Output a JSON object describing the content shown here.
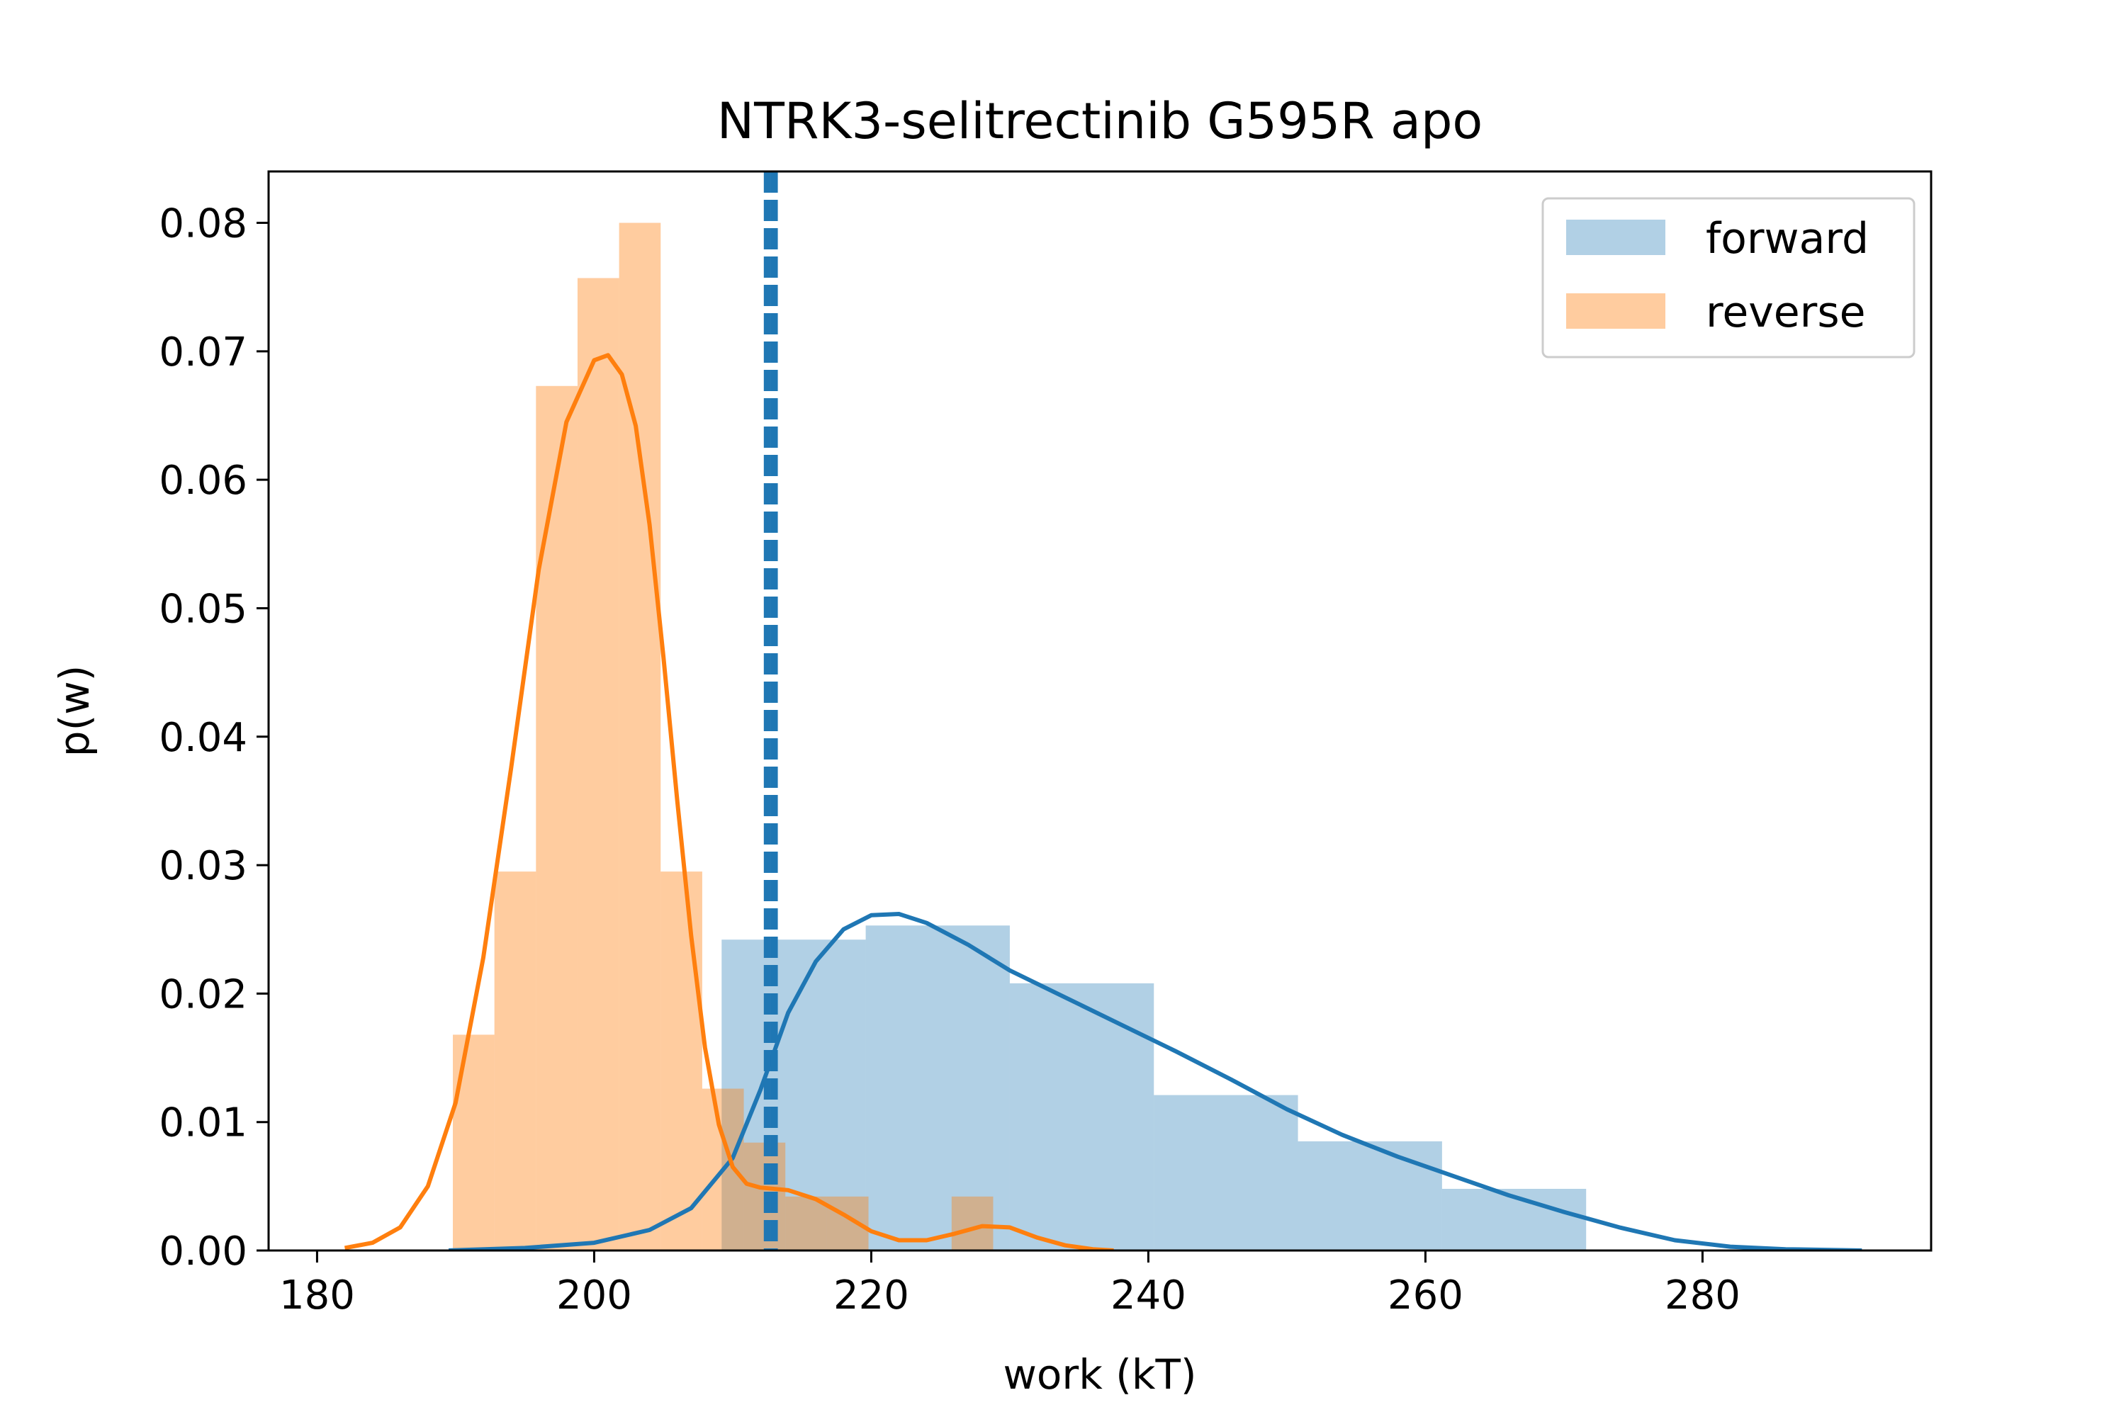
{
  "chart_data": {
    "type": "histogram",
    "title": "NTRK3-selitrectinib G595R apo",
    "xlabel": "work (kT)",
    "ylabel": "p(w)",
    "xlim": [
      176.5,
      296.5
    ],
    "ylim": [
      0,
      0.084
    ],
    "xticks": [
      180,
      200,
      220,
      240,
      260,
      280
    ],
    "yticks": [
      0.0,
      0.01,
      0.02,
      0.03,
      0.04,
      0.05,
      0.06,
      0.07,
      0.08
    ],
    "xtick_labels": [
      "180",
      "200",
      "220",
      "240",
      "260",
      "280"
    ],
    "ytick_labels": [
      "0.00",
      "0.01",
      "0.02",
      "0.03",
      "0.04",
      "0.05",
      "0.06",
      "0.07",
      "0.08"
    ],
    "legend_position": "upper right",
    "grid": false,
    "series": [
      {
        "name": "forward",
        "color": "#1f77b4",
        "hist_opacity": 0.35,
        "bins": [
          {
            "x0": 209.2,
            "x1": 219.6,
            "density": 0.0242
          },
          {
            "x0": 219.6,
            "x1": 230.0,
            "density": 0.0253
          },
          {
            "x0": 230.0,
            "x1": 240.4,
            "density": 0.0208
          },
          {
            "x0": 240.4,
            "x1": 250.8,
            "density": 0.0121
          },
          {
            "x0": 250.8,
            "x1": 261.2,
            "density": 0.0085
          },
          {
            "x0": 261.2,
            "x1": 271.6,
            "density": 0.0048
          }
        ],
        "kde": [
          [
            189.5,
            0.0
          ],
          [
            195,
            0.0002
          ],
          [
            200,
            0.0006
          ],
          [
            204,
            0.0016
          ],
          [
            207,
            0.0033
          ],
          [
            210,
            0.0072
          ],
          [
            212,
            0.0125
          ],
          [
            213,
            0.0155
          ],
          [
            214,
            0.0185
          ],
          [
            216,
            0.0225
          ],
          [
            218,
            0.025
          ],
          [
            220,
            0.0261
          ],
          [
            222,
            0.0262
          ],
          [
            224,
            0.0255
          ],
          [
            227,
            0.0238
          ],
          [
            230,
            0.0218
          ],
          [
            234,
            0.0197
          ],
          [
            238,
            0.0176
          ],
          [
            242,
            0.0155
          ],
          [
            246,
            0.0133
          ],
          [
            250,
            0.011
          ],
          [
            254,
            0.009
          ],
          [
            258,
            0.0073
          ],
          [
            262,
            0.0058
          ],
          [
            266,
            0.0043
          ],
          [
            270,
            0.003
          ],
          [
            274,
            0.0018
          ],
          [
            278,
            0.0008
          ],
          [
            282,
            0.0003
          ],
          [
            286,
            0.0001
          ],
          [
            291.5,
            0.0
          ]
        ],
        "mean_line": 212.5
      },
      {
        "name": "reverse",
        "color": "#ff7f0e",
        "hist_opacity": 0.4,
        "bins": [
          {
            "x0": 189.8,
            "x1": 192.8,
            "density": 0.0168
          },
          {
            "x0": 192.8,
            "x1": 195.8,
            "density": 0.0295
          },
          {
            "x0": 195.8,
            "x1": 198.8,
            "density": 0.0673
          },
          {
            "x0": 198.8,
            "x1": 201.8,
            "density": 0.0757
          },
          {
            "x0": 201.8,
            "x1": 204.8,
            "density": 0.08
          },
          {
            "x0": 204.8,
            "x1": 207.8,
            "density": 0.0295
          },
          {
            "x0": 207.8,
            "x1": 210.8,
            "density": 0.0126
          },
          {
            "x0": 210.8,
            "x1": 213.8,
            "density": 0.0084
          },
          {
            "x0": 213.8,
            "x1": 216.8,
            "density": 0.0042
          },
          {
            "x0": 216.8,
            "x1": 219.8,
            "density": 0.0042
          },
          {
            "x0": 219.8,
            "x1": 222.8,
            "density": 0.0
          },
          {
            "x0": 222.8,
            "x1": 225.8,
            "density": 0.0
          },
          {
            "x0": 225.8,
            "x1": 228.8,
            "density": 0.0042
          }
        ],
        "kde": [
          [
            182,
            0.0002
          ],
          [
            184,
            0.0006
          ],
          [
            186,
            0.0018
          ],
          [
            188,
            0.005
          ],
          [
            190,
            0.0115
          ],
          [
            192,
            0.0228
          ],
          [
            194,
            0.0375
          ],
          [
            196,
            0.053
          ],
          [
            198,
            0.0645
          ],
          [
            200,
            0.0693
          ],
          [
            201,
            0.0697
          ],
          [
            202,
            0.0682
          ],
          [
            203,
            0.0642
          ],
          [
            204,
            0.0565
          ],
          [
            205,
            0.0462
          ],
          [
            206,
            0.035
          ],
          [
            207,
            0.0245
          ],
          [
            208,
            0.0158
          ],
          [
            209,
            0.0098
          ],
          [
            210,
            0.0065
          ],
          [
            211,
            0.0052
          ],
          [
            212,
            0.0049
          ],
          [
            214,
            0.0047
          ],
          [
            216,
            0.004
          ],
          [
            218,
            0.0028
          ],
          [
            220,
            0.0015
          ],
          [
            222,
            0.0008
          ],
          [
            224,
            0.0008
          ],
          [
            226,
            0.0013
          ],
          [
            228,
            0.0019
          ],
          [
            230,
            0.0018
          ],
          [
            232,
            0.001
          ],
          [
            234,
            0.0004
          ],
          [
            236,
            0.0001
          ],
          [
            237.5,
            0.0
          ]
        ],
        "mean_line": 213.0
      }
    ]
  }
}
